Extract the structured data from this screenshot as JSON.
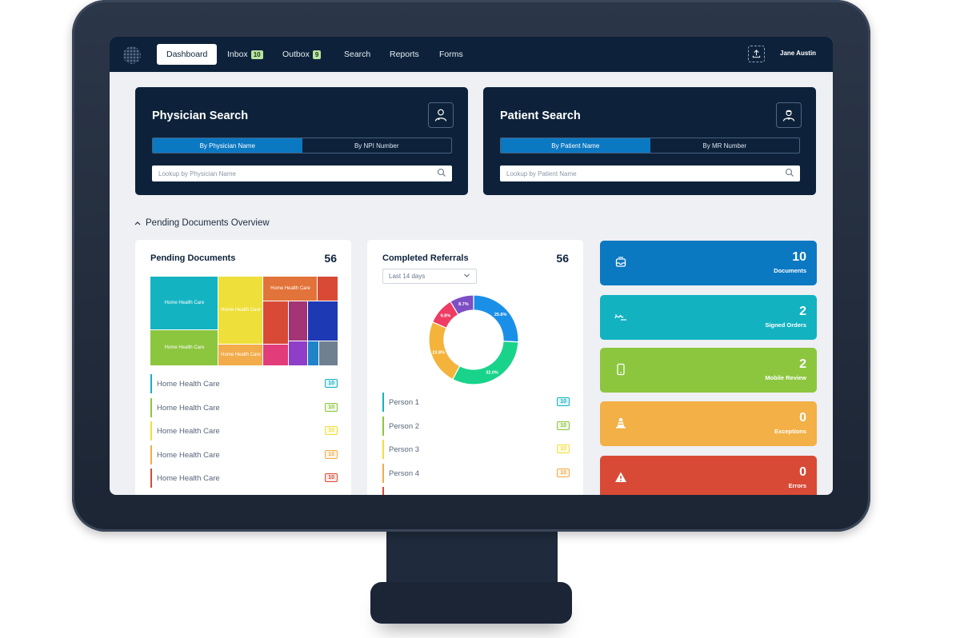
{
  "nav": {
    "items": [
      {
        "label": "Dashboard",
        "active": true
      },
      {
        "label": "Inbox",
        "badge": "10"
      },
      {
        "label": "Outbox",
        "badge": "9"
      },
      {
        "label": "Search"
      },
      {
        "label": "Reports"
      },
      {
        "label": "Forms"
      }
    ],
    "user": "Jane Austin",
    "upload_icon": "upload-icon"
  },
  "physician_search": {
    "title": "Physician Search",
    "icon": "doctor-icon",
    "tabs": [
      "By Physician Name",
      "By NPI Number"
    ],
    "placeholder": "Lookup by Physician Name"
  },
  "patient_search": {
    "title": "Patient Search",
    "icon": "patient-icon",
    "tabs": [
      "By Patient Name",
      "By MR Number"
    ],
    "placeholder": "Lookup by Patient Name"
  },
  "section": {
    "title": "Pending Documents Overview"
  },
  "pending_documents": {
    "title": "Pending Documents",
    "count": "56",
    "treemap": [
      {
        "label": "Home Health Care",
        "color": "#14b3c2"
      },
      {
        "label": "Home Health Care",
        "color": "#8cc63f"
      },
      {
        "label": "Home Health Care",
        "color": "#efdf3a"
      },
      {
        "label": "Home Health Care",
        "color": "#f2ac4a"
      },
      {
        "label": "Home Health Care",
        "color": "#e2733a"
      },
      {
        "label": "",
        "color": "#d84a36"
      },
      {
        "label": "",
        "color": "#d84a36"
      },
      {
        "label": "",
        "color": "#a33475"
      },
      {
        "label": "",
        "color": "#1d39b4"
      },
      {
        "label": "",
        "color": "#e23c7a"
      },
      {
        "label": "",
        "color": "#8e3ec7"
      },
      {
        "label": "",
        "color": "#1f83c8"
      },
      {
        "label": "",
        "color": "#6f8090"
      }
    ],
    "rows": [
      {
        "label": "Home Health Care",
        "value": "10",
        "color": "#14b3c2"
      },
      {
        "label": "Home Health Care",
        "value": "10",
        "color": "#8cc63f"
      },
      {
        "label": "Home Health Care",
        "value": "10",
        "color": "#efdf3a"
      },
      {
        "label": "Home Health Care",
        "value": "10",
        "color": "#f2ac4a"
      },
      {
        "label": "Home Health Care",
        "value": "10",
        "color": "#d84a36"
      }
    ]
  },
  "completed_referrals": {
    "title": "Completed Referrals",
    "count": "56",
    "range": "Last 14 days",
    "rows": [
      {
        "label": "Person 1",
        "value": "10",
        "color": "#14b3c2"
      },
      {
        "label": "Person 2",
        "value": "10",
        "color": "#8cc63f"
      },
      {
        "label": "Person 3",
        "value": "10",
        "color": "#efdf3a"
      },
      {
        "label": "Person 4",
        "value": "10",
        "color": "#f2ac4a"
      },
      {
        "label": "",
        "value": "",
        "color": "#d84a36"
      }
    ]
  },
  "chart_data": {
    "type": "pie",
    "donut": true,
    "slices": [
      {
        "label": "25.8%",
        "value": 25.8,
        "color": "#1a8fe8"
      },
      {
        "label": "32.0%",
        "value": 32.0,
        "color": "#19d38a"
      },
      {
        "label": "23.8%",
        "value": 23.8,
        "color": "#f4b33a"
      },
      {
        "label": "9.8%",
        "value": 9.8,
        "color": "#ee3c64"
      },
      {
        "label": "8.7%",
        "value": 8.7,
        "color": "#7d4fc4"
      }
    ]
  },
  "stats": [
    {
      "value": "10",
      "label": "Documents",
      "color": "#0b78c2",
      "icon": "inbox-icon"
    },
    {
      "value": "2",
      "label": "Signed Orders",
      "color": "#12b2c1",
      "icon": "signature-icon"
    },
    {
      "value": "2",
      "label": "Mobile Review",
      "color": "#8cc63f",
      "icon": "mobile-icon"
    },
    {
      "value": "0",
      "label": "Exceptions",
      "color": "#f2b046",
      "icon": "cone-icon"
    },
    {
      "value": "0",
      "label": "Errors",
      "color": "#d84a36",
      "icon": "warning-icon"
    }
  ]
}
